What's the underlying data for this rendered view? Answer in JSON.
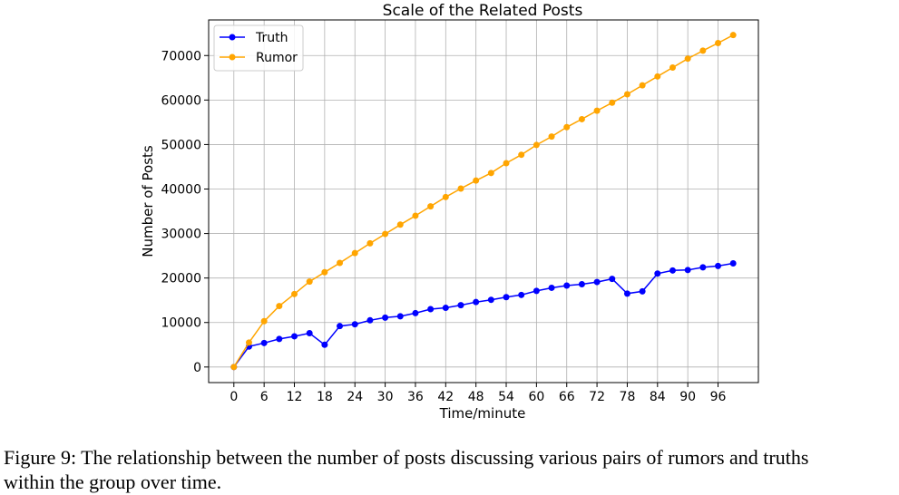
{
  "chart_data": {
    "type": "line",
    "title": "Scale of the Related Posts",
    "xlabel": "Time/minute",
    "ylabel": "Number of Posts",
    "xlim": [
      -5,
      104
    ],
    "ylim": [
      -3500,
      78000
    ],
    "xticks": [
      0,
      6,
      12,
      18,
      24,
      30,
      36,
      42,
      48,
      54,
      60,
      66,
      72,
      78,
      84,
      90,
      96
    ],
    "yticks": [
      0,
      10000,
      20000,
      30000,
      40000,
      50000,
      60000,
      70000
    ],
    "grid": true,
    "legend": "top-left",
    "x": [
      0,
      3,
      6,
      9,
      12,
      15,
      18,
      21,
      24,
      27,
      30,
      33,
      36,
      39,
      42,
      45,
      48,
      51,
      54,
      57,
      60,
      63,
      66,
      69,
      72,
      75,
      78,
      81,
      84,
      87,
      90,
      93,
      96,
      99
    ],
    "series": [
      {
        "name": "Truth",
        "color": "#0000ff",
        "values": [
          0,
          4600,
          5400,
          6300,
          6900,
          7600,
          5000,
          9200,
          9600,
          10500,
          11100,
          11400,
          12100,
          13000,
          13300,
          13900,
          14600,
          15100,
          15700,
          16200,
          17100,
          17800,
          18300,
          18600,
          19100,
          19800,
          16500,
          17000,
          21000,
          21700,
          21800,
          22400,
          22700,
          23300
        ]
      },
      {
        "name": "Rumor",
        "color": "#ffa500",
        "values": [
          0,
          5500,
          10300,
          13700,
          16400,
          19200,
          21300,
          23400,
          25600,
          27800,
          29900,
          32000,
          34000,
          36100,
          38200,
          40100,
          41900,
          43600,
          45800,
          47700,
          49900,
          51800,
          53900,
          55700,
          57600,
          59400,
          61300,
          63300,
          65300,
          67300,
          69300,
          71100,
          72800,
          74600
        ]
      }
    ]
  },
  "caption": {
    "line1": "Figure 9: The relationship between the number of posts discussing various pairs of rumors and truths",
    "line2": "within the group over time."
  }
}
